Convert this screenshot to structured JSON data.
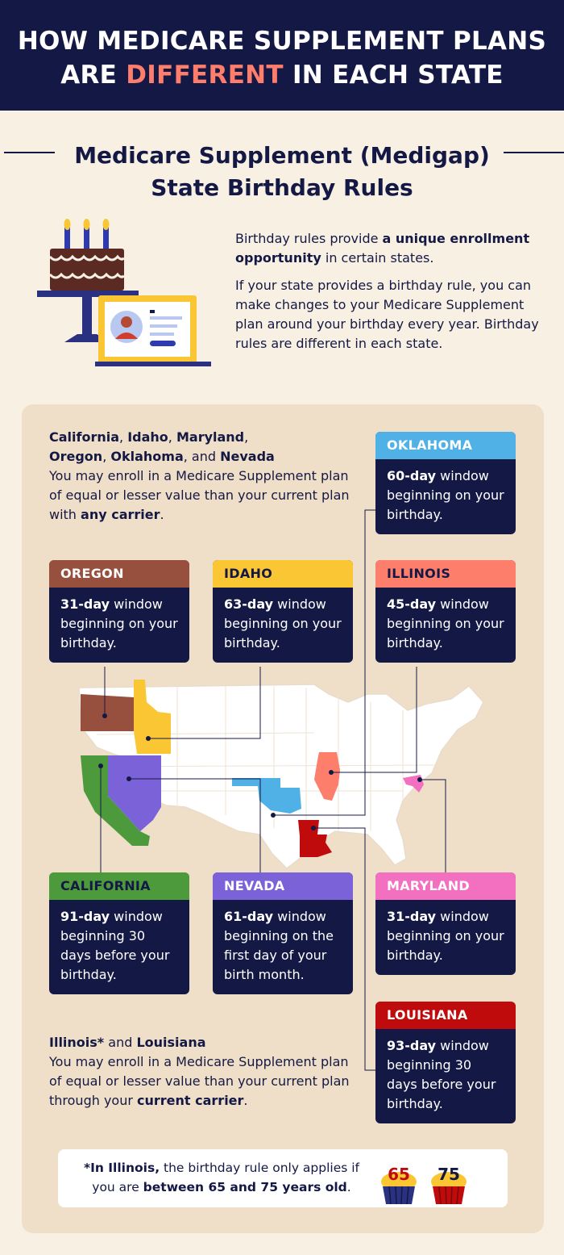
{
  "header": {
    "title_line1": "HOW MEDICARE SUPPLEMENT PLANS",
    "title_line2_pre": "ARE ",
    "title_line2_accent": "DIFFERENT",
    "title_line2_post": " IN EACH STATE"
  },
  "section": {
    "title_line1": "Medicare Supplement (Medigap)",
    "title_line2": "State Birthday Rules"
  },
  "intro": {
    "p1_pre": "Birthday rules provide ",
    "p1_bold": "a unique enrollment opportunity",
    "p1_post": " in certain states.",
    "p2": "If your state provides a birthday rule, you can make changes to your Medicare Supplement plan around your birthday every year. Birthday rules are different in each state."
  },
  "group_any": {
    "states": [
      "California",
      "Idaho",
      "Maryland",
      "Oregon",
      "Oklahoma"
    ],
    "and": "and",
    "last_state": "Nevada",
    "text_pre": "You may enroll in a Medicare Supplement plan of equal or lesser value than your current plan with ",
    "text_bold": "any carrier",
    "text_post": "."
  },
  "group_current": {
    "state1": "Illinois*",
    "and": "and",
    "state2": "Louisiana",
    "text_pre": "You may enroll in a Medicare Supplement plan of equal or lesser value than your current plan through your ",
    "text_bold": "current carrier",
    "text_post": "."
  },
  "cards": {
    "oklahoma": {
      "name": "OKLAHOMA",
      "days": "60-day",
      "rest": " window beginning on your birthday."
    },
    "oregon": {
      "name": "OREGON",
      "days": "31-day",
      "rest": " window beginning on your birthday."
    },
    "idaho": {
      "name": "IDAHO",
      "days": "63-day",
      "rest": " window beginning on your birthday."
    },
    "illinois": {
      "name": "ILLINOIS",
      "days": "45-day",
      "rest": " window beginning on your birthday."
    },
    "california": {
      "name": "CALIFORNIA",
      "days": "91-day",
      "rest": " window beginning 30 days before your birthday."
    },
    "nevada": {
      "name": "NEVADA",
      "days": "61-day",
      "rest": " window beginning on the first day of your birth month."
    },
    "maryland": {
      "name": "MARYLAND",
      "days": "31-day",
      "rest": " window beginning on your birthday."
    },
    "louisiana": {
      "name": "LOUISIANA",
      "days": "93-day",
      "rest": " window beginning 30 days before your birthday."
    }
  },
  "note": {
    "bold1": "*In Illinois,",
    "mid": " the birthday rule only applies if you are ",
    "bold2": "between 65 and 75 years old",
    "end": "."
  },
  "cupcakes": {
    "age1": "65",
    "age2": "75"
  },
  "colors": {
    "navy": "#141844",
    "accent": "#ff7e6b",
    "background": "#f8f0e3",
    "panel": "#efdfc8",
    "oregon": "#98503e",
    "idaho": "#fac634",
    "illinois": "#fd7e6b",
    "oklahoma": "#4fb1e6",
    "california": "#4d9a3c",
    "nevada": "#7b62d8",
    "maryland": "#f36fc0",
    "louisiana": "#bf0b0b"
  }
}
